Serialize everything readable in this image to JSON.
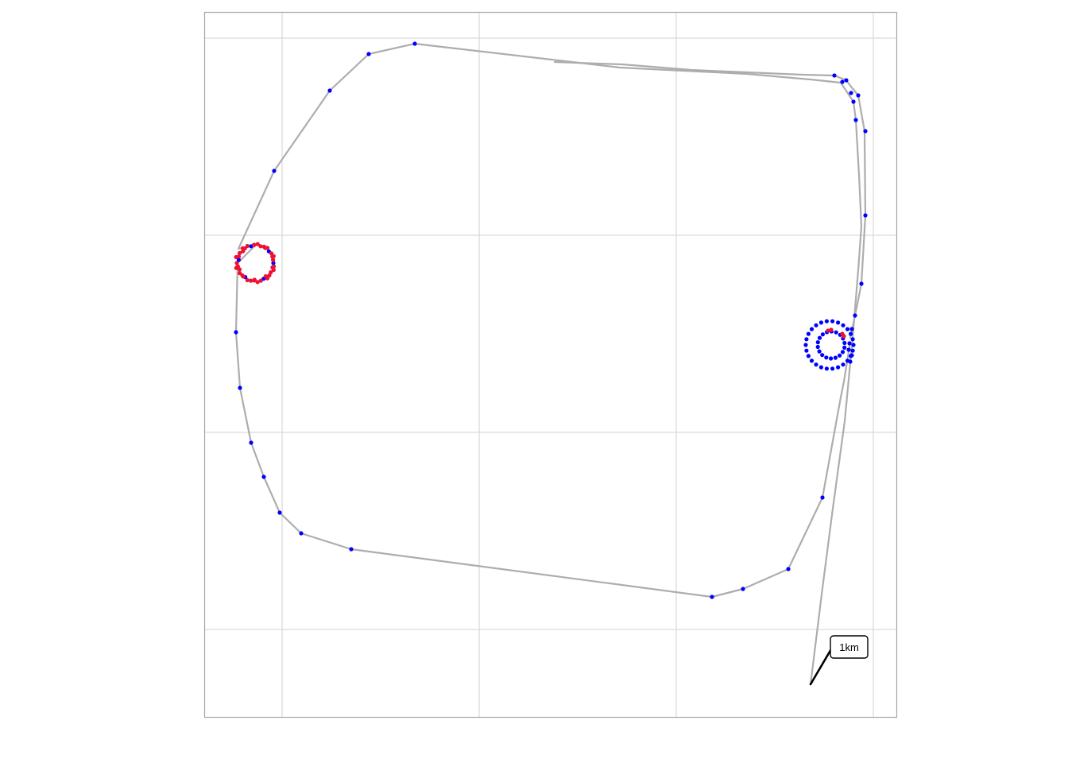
{
  "map": {
    "grid": true,
    "colors": {
      "track": "#adadad",
      "fix_point": "#0000ff",
      "highlight_point": "#ee1133",
      "grid": "#d9d9d9",
      "panel_border": "#a6a6a6"
    },
    "scale_label": "1km",
    "features": [
      "flight-track",
      "thermal-circle-west",
      "thermal-circle-east",
      "scale-bar"
    ]
  }
}
